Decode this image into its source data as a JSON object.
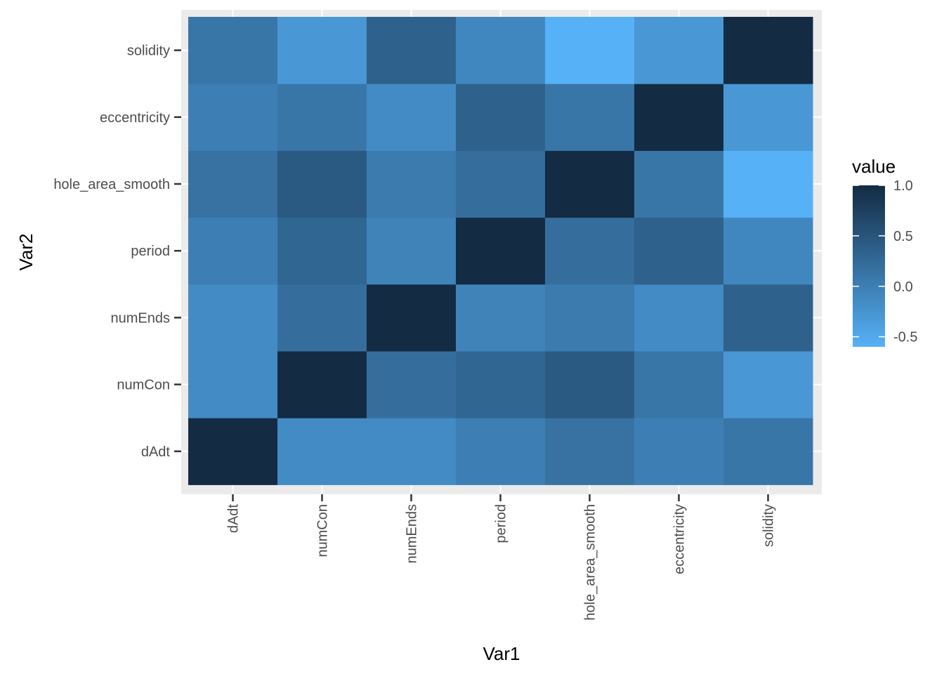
{
  "chart_data": {
    "type": "heatmap",
    "title": "",
    "xlabel": "Var1",
    "ylabel": "Var2",
    "x_categories": [
      "dAdt",
      "numCon",
      "numEnds",
      "period",
      "hole_area_smooth",
      "eccentricity",
      "solidity"
    ],
    "y_categories": [
      "dAdt",
      "numCon",
      "numEnds",
      "period",
      "hole_area_smooth",
      "eccentricity",
      "solidity"
    ],
    "values": [
      [
        1.0,
        -0.15,
        -0.15,
        0.0,
        0.15,
        0.0,
        0.1
      ],
      [
        -0.15,
        1.0,
        0.2,
        0.3,
        0.45,
        0.1,
        -0.3
      ],
      [
        -0.15,
        0.2,
        1.0,
        -0.05,
        0.05,
        -0.15,
        0.35
      ],
      [
        0.0,
        0.3,
        -0.05,
        1.0,
        0.2,
        0.35,
        -0.1
      ],
      [
        0.15,
        0.45,
        0.05,
        0.2,
        1.0,
        0.1,
        -0.6
      ],
      [
        0.0,
        0.1,
        -0.15,
        0.35,
        0.1,
        1.0,
        -0.3
      ],
      [
        0.1,
        -0.3,
        0.35,
        -0.1,
        -0.6,
        -0.3,
        1.0
      ]
    ],
    "value_grid_note": "",
    "legend": {
      "title": "value",
      "ticks": [
        "1.0",
        "0.5",
        "0.0",
        "-0.5"
      ],
      "tick_values": [
        1.0,
        0.5,
        0.0,
        -0.5
      ],
      "min": -0.6,
      "max": 1.0,
      "low_color": "#56B1F7",
      "high_color": "#132B43",
      "placement": "right"
    },
    "panel_background": "#EBEBEB",
    "grid": true
  }
}
